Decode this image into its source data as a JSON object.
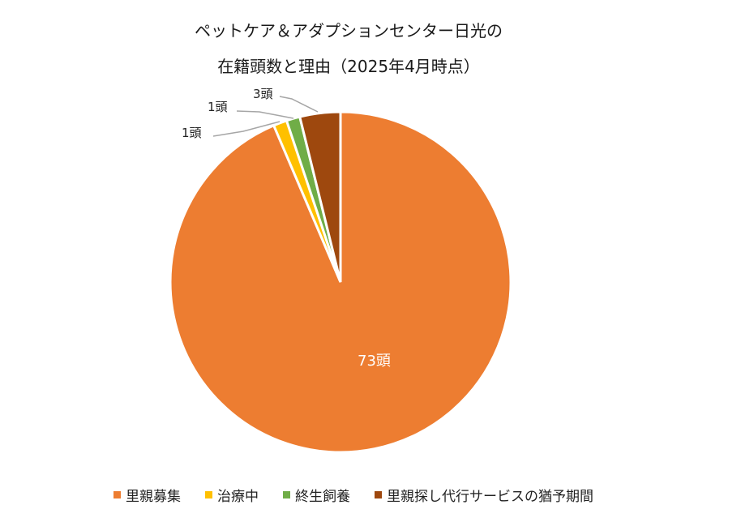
{
  "chart_data": {
    "type": "pie",
    "title": "ペットケア＆アダプションセンター日光の在籍頭数と理由（2025年4月時点）",
    "title_lines": [
      "ペットケア＆アダプションセンター日光の",
      "在籍頭数と理由（2025年4月時点）"
    ],
    "categories": [
      "里親募集",
      "治療中",
      "終生飼養",
      "里親探し代行サービスの猶予期間"
    ],
    "values": [
      73,
      1,
      1,
      3
    ],
    "unit": "頭",
    "data_labels": [
      "73頭",
      "1頭",
      "1頭",
      "3頭"
    ],
    "colors": [
      "#ED7D31",
      "#FFC000",
      "#70AD47",
      "#9E480E"
    ],
    "start_angle_deg": 0,
    "direction": "clockwise",
    "legend_position": "bottom"
  }
}
